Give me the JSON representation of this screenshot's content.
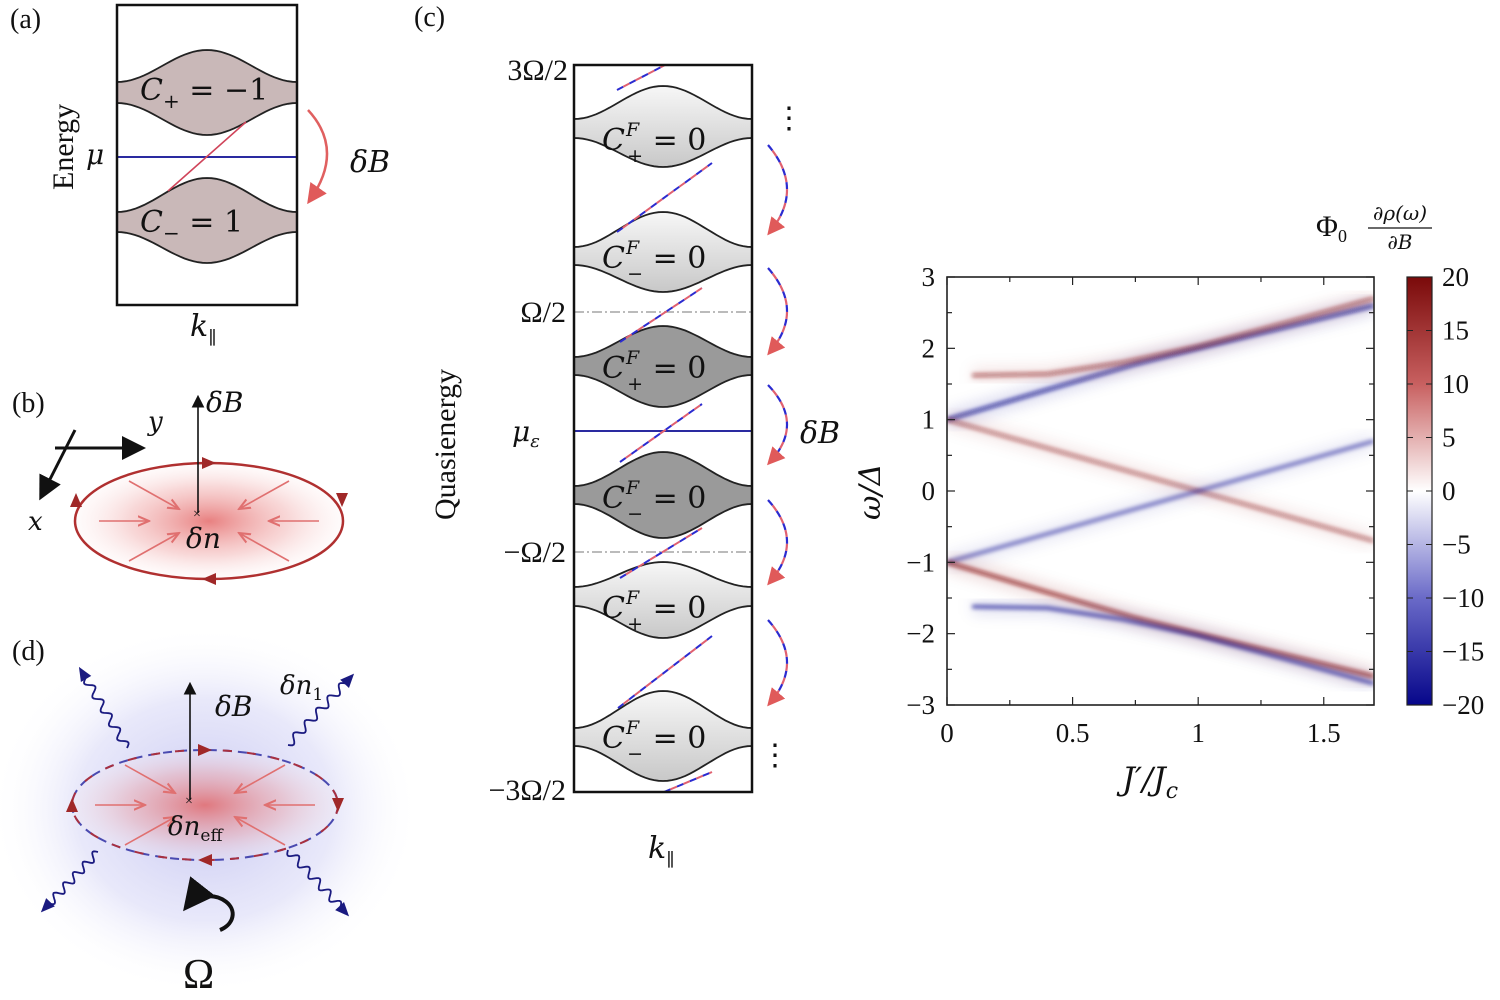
{
  "panels": {
    "a": {
      "label": "(a)",
      "ylabel": "Energy",
      "xlabel_main": "k",
      "xlabel_sub": "∥",
      "mu": "μ",
      "field": "δB",
      "bands": [
        {
          "symbol": "C",
          "sub": "+",
          "rhs": " = −1"
        },
        {
          "symbol": "C",
          "sub": "−",
          "rhs": " = 1"
        }
      ],
      "colors": {
        "band": "#c9b8b8",
        "mu_line": "#2a2aa0",
        "edge_state": "#d0445a",
        "arrow": "#e06060"
      }
    },
    "b": {
      "label": "(b)",
      "axis_x": "x",
      "axis_y": "y",
      "field": "δB",
      "density": "δn"
    },
    "c": {
      "label": "(c)",
      "ylabel": "Quasienergy",
      "xlabel_main": "k",
      "xlabel_sub": "∥",
      "yticks": [
        "3Ω/2",
        "Ω/2",
        "−Ω/2",
        "−3Ω/2"
      ],
      "mu_main": "μ",
      "mu_sub": "ε",
      "field": "δB",
      "ellipsis": "⋮",
      "bands": [
        {
          "symbol": "C",
          "sup": "F",
          "sub": "+",
          "rhs": " = 0"
        },
        {
          "symbol": "C",
          "sup": "F",
          "sub": "−",
          "rhs": " = 0"
        },
        {
          "symbol": "C",
          "sup": "F",
          "sub": "+",
          "rhs": " = 0"
        },
        {
          "symbol": "C",
          "sup": "F",
          "sub": "−",
          "rhs": " = 0"
        },
        {
          "symbol": "C",
          "sup": "F",
          "sub": "+",
          "rhs": " = 0"
        },
        {
          "symbol": "C",
          "sup": "F",
          "sub": "−",
          "rhs": " = 0"
        }
      ]
    },
    "d": {
      "label": "(d)",
      "field": "δB",
      "emission_main": "δn",
      "emission_sub": "1",
      "density_main": "δn",
      "density_sub": "eff",
      "rotation": "Ω"
    }
  },
  "chart_data": {
    "type": "heatmap",
    "xlabel": "J′/J_c",
    "xlabel_main": "J′/J",
    "xlabel_sub": "c",
    "ylabel": "ω/Δ",
    "xlim": [
      0,
      1.7
    ],
    "ylim": [
      -3,
      3
    ],
    "xticks": [
      "0",
      "0.5",
      "1",
      "1.5"
    ],
    "xtick_values": [
      0,
      0.5,
      1,
      1.5
    ],
    "yticks": [
      "3",
      "2",
      "1",
      "0",
      "−1",
      "−2",
      "−3"
    ],
    "ytick_values": [
      3,
      2,
      1,
      0,
      -1,
      -2,
      -3
    ],
    "grid": false,
    "colorbar": {
      "title_main": "Φ",
      "title_sub": "0",
      "title_num": "∂ρ(ω)",
      "title_den": "∂B",
      "range": [
        -20,
        20
      ],
      "ticks": [
        "20",
        "15",
        "10",
        "5",
        "0",
        "−5",
        "−10",
        "−15",
        "−20"
      ],
      "tick_values": [
        20,
        15,
        10,
        5,
        0,
        -5,
        -10,
        -15,
        -20
      ],
      "placement": "right"
    },
    "colormap": {
      "negative": "#0a0a8c",
      "zero": "#ffffff",
      "positive": "#8a0f0f"
    },
    "features": [
      {
        "sign": "negative",
        "value": -15,
        "points": [
          [
            0,
            1
          ],
          [
            0.4,
            1.42
          ],
          [
            0.75,
            1.78
          ],
          [
            1.0,
            2.0
          ],
          [
            1.35,
            2.3
          ],
          [
            1.7,
            2.6
          ]
        ]
      },
      {
        "sign": "positive",
        "value": 8,
        "points": [
          [
            0.1,
            1.62
          ],
          [
            0.4,
            1.64
          ],
          [
            0.7,
            1.8
          ],
          [
            1.0,
            2.03
          ],
          [
            1.35,
            2.36
          ],
          [
            1.7,
            2.7
          ]
        ]
      },
      {
        "sign": "positive",
        "value": 6,
        "points": [
          [
            0,
            1
          ],
          [
            1.0,
            0
          ],
          [
            1.7,
            -0.7
          ]
        ]
      },
      {
        "sign": "negative",
        "value": -6,
        "points": [
          [
            0,
            -1
          ],
          [
            1.0,
            0
          ],
          [
            1.7,
            0.7
          ]
        ]
      },
      {
        "sign": "positive",
        "value": 15,
        "points": [
          [
            0,
            -1
          ],
          [
            0.4,
            -1.42
          ],
          [
            0.75,
            -1.78
          ],
          [
            1.0,
            -2.0
          ],
          [
            1.35,
            -2.3
          ],
          [
            1.7,
            -2.6
          ]
        ]
      },
      {
        "sign": "negative",
        "value": -10,
        "points": [
          [
            0.1,
            -1.62
          ],
          [
            0.4,
            -1.64
          ],
          [
            0.7,
            -1.8
          ],
          [
            1.0,
            -2.03
          ],
          [
            1.35,
            -2.36
          ],
          [
            1.7,
            -2.7
          ]
        ]
      }
    ]
  }
}
